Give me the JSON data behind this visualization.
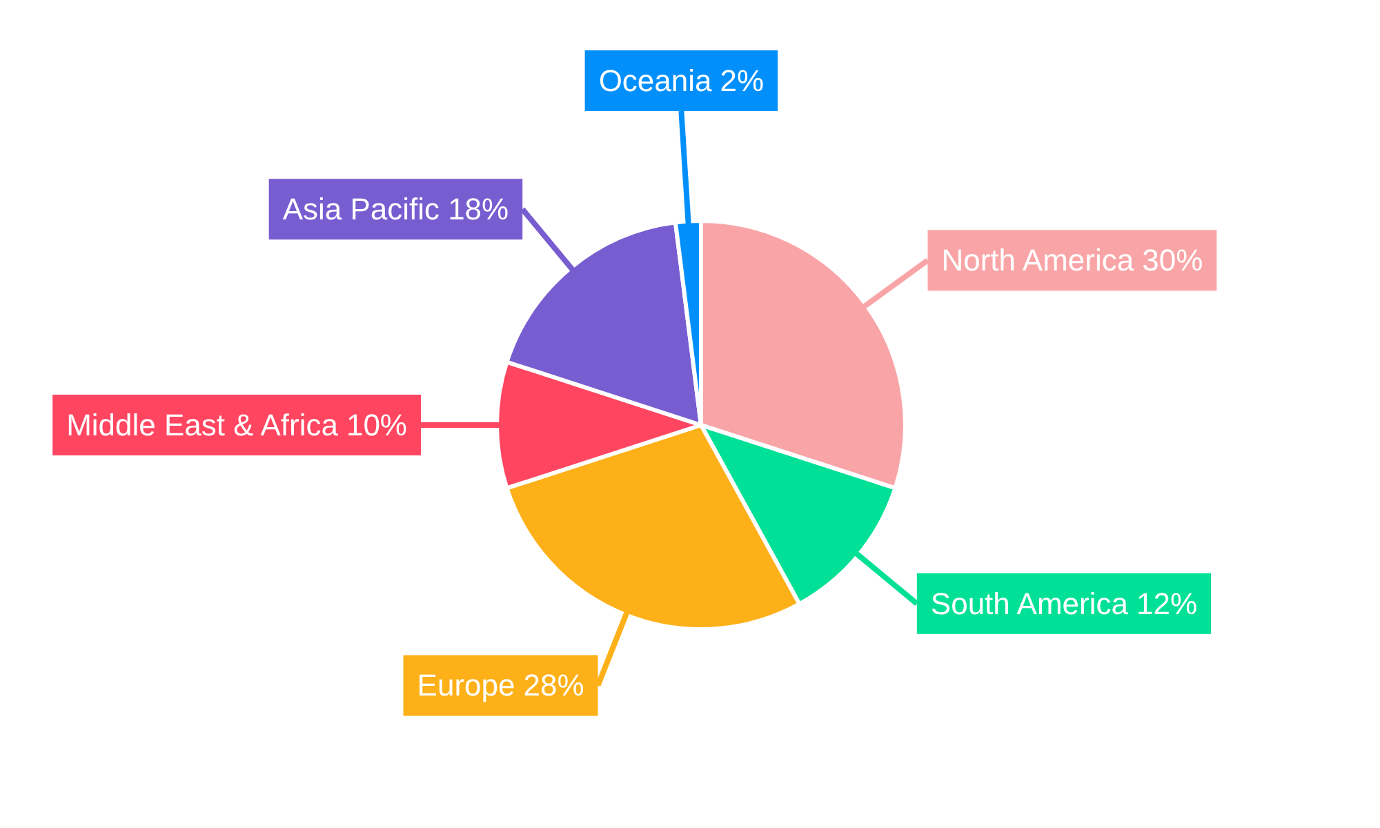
{
  "chart_data": {
    "type": "pie",
    "categories": [
      "North America",
      "South America",
      "Europe",
      "Middle East & Africa",
      "Asia Pacific",
      "Oceania"
    ],
    "values": [
      30,
      12,
      28,
      10,
      18,
      2
    ],
    "colors": [
      "#f9a5a7",
      "#00e096",
      "#feb019",
      "#ff4560",
      "#775dd0",
      "#008ffb"
    ],
    "value_labels": [
      "30%",
      "12%",
      "28%",
      "10%",
      "18%",
      "2%"
    ]
  }
}
